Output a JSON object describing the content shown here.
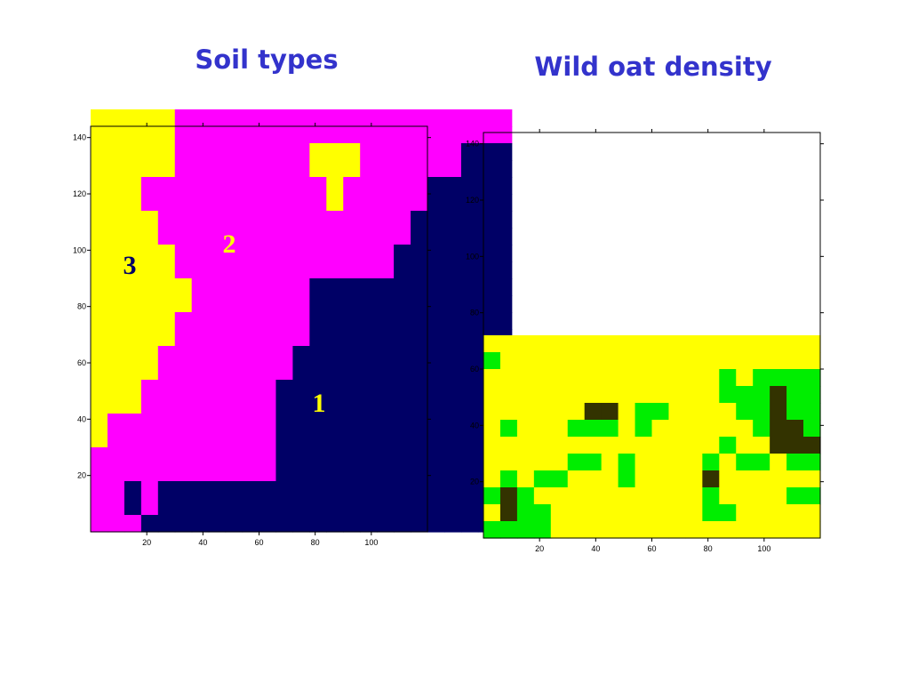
{
  "slide": {
    "left_title": "Soil types",
    "right_title": "Wild oat density"
  },
  "colors": {
    "title": "#3333cc",
    "yellow": "#ffff00",
    "magenta": "#ff00ff",
    "navy": "#000066",
    "green": "#00ee00",
    "dark": "#333300"
  },
  "chart_data": [
    {
      "type": "heatmap",
      "title": "Soil types",
      "xlabel": "",
      "ylabel": "",
      "xlim": [
        0,
        120
      ],
      "ylim": [
        0,
        144
      ],
      "x_ticks": [
        "20",
        "40",
        "60",
        "80",
        "100"
      ],
      "y_ticks": [
        "20",
        "40",
        "60",
        "80",
        "100",
        "120",
        "140"
      ],
      "cell_width": 6,
      "cell_height": 6,
      "rows_from_top": [
        "3333322222222222222222222",
        "3333322222222222222222222",
        "3333322222222333222222111",
        "3333322222222333222222111",
        "3332222222222232222211111",
        "3332222222222232222211111",
        "3333222222222222222111111",
        "3333222222222222222111111",
        "3333322222222222221111111",
        "3333322222222222221111111",
        "3333332222222111111111111",
        "3333332222222111111111111",
        "3333322222222111111111111",
        "3333322222222111111111111",
        "3333222222221111111111111",
        "3333222222221111111111111",
        "3332222222211111111111111",
        "3332222222211111111111111",
        "3222222222211111111111111",
        "3222222222211111111111111",
        "2222222222211111111111111",
        "2222222222211111111111111",
        "2212111111111111111111111",
        "2212111111111111111111111",
        "2221111111111111111111111"
      ],
      "legend": {
        "1": "#000066",
        "2": "#ff00ff",
        "3": "#ffff00"
      },
      "annotations": [
        {
          "text": "3",
          "color": "#000066"
        },
        {
          "text": "2",
          "color": "#ffff00"
        },
        {
          "text": "1",
          "color": "#ffff00"
        }
      ]
    },
    {
      "type": "heatmap",
      "title": "Wild oat density",
      "xlabel": "",
      "ylabel": "",
      "xlim": [
        0,
        120
      ],
      "ylim": [
        0,
        144
      ],
      "x_ticks": [
        "20",
        "40",
        "60",
        "80",
        "100"
      ],
      "y_ticks": [
        "20",
        "40",
        "60",
        "80",
        "100",
        "120",
        "140"
      ],
      "cell_width": 6,
      "cell_height": 6,
      "rows_from_top": [
        "00000000000000000000",
        "10000000000000000000",
        "00000000000000101111",
        "00000000000000111211",
        "00000022011000011211",
        "01000111010000001221",
        "00000000000000100222",
        "00000110100001011011",
        "01011000100002000000",
        "12100000000001000011",
        "02110000000001100000",
        "11110000000000000000"
      ],
      "legend": {
        "0": "#ffff00",
        "1": "#00ee00",
        "2": "#333300"
      }
    }
  ]
}
